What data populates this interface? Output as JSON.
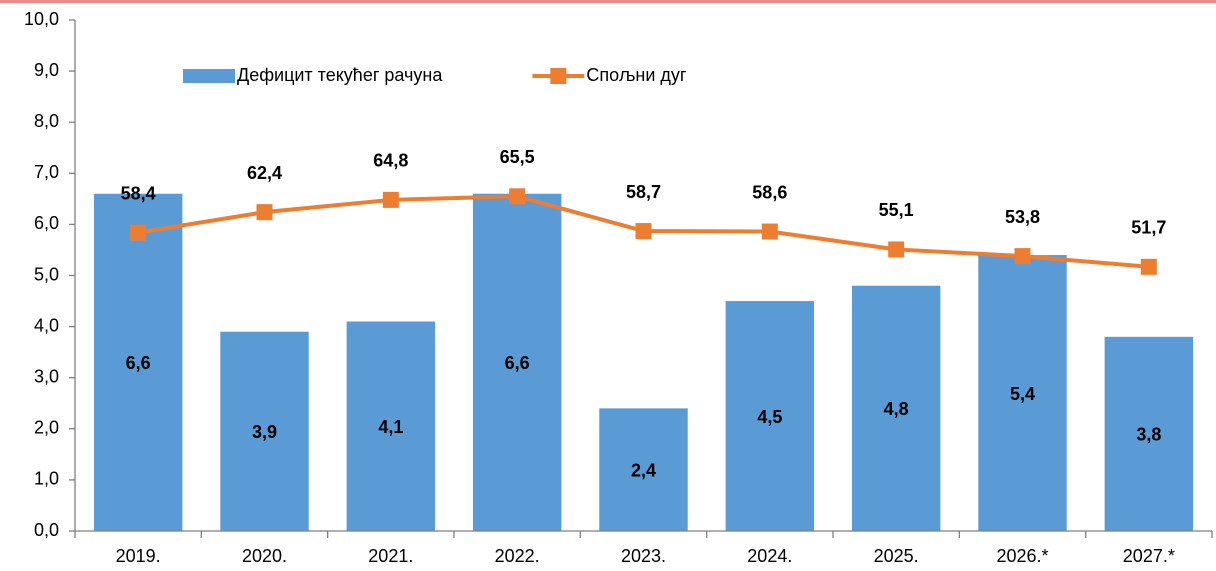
{
  "chart_data": {
    "type": "bar",
    "categories": [
      "2019.",
      "2020.",
      "2021.",
      "2022.",
      "2023.",
      "2024.",
      "2025.",
      "2026.*",
      "2027.*"
    ],
    "series": [
      {
        "name": "Дефицит текућег рачуна",
        "color": "#5b9bd5",
        "type": "bar",
        "values": [
          6.6,
          3.9,
          4.1,
          6.6,
          2.4,
          4.5,
          4.8,
          5.4,
          3.8
        ],
        "value_labels": [
          "6,6",
          "3,9",
          "4,1",
          "6,6",
          "2,4",
          "4,5",
          "4,8",
          "5,4",
          "3,8"
        ]
      },
      {
        "name": "Спољни дуг",
        "color": "#ed7d31",
        "type": "line",
        "axis": "y2",
        "values": [
          58.4,
          62.4,
          64.8,
          65.5,
          58.7,
          58.6,
          55.1,
          53.8,
          51.7
        ],
        "value_labels": [
          "58,4",
          "62,4",
          "64,8",
          "65,5",
          "58,7",
          "58,6",
          "55,1",
          "53,8",
          "51,7"
        ]
      }
    ],
    "ylim": [
      0,
      10
    ],
    "yticks": [
      {
        "value": 0,
        "label": "0,0"
      },
      {
        "value": 1,
        "label": "1,0"
      },
      {
        "value": 2,
        "label": "2,0"
      },
      {
        "value": 3,
        "label": "3,0"
      },
      {
        "value": 4,
        "label": "4,0"
      },
      {
        "value": 5,
        "label": "5,0"
      },
      {
        "value": 6,
        "label": "6,0"
      },
      {
        "value": 7,
        "label": "7,0"
      },
      {
        "value": 8,
        "label": "8,0"
      },
      {
        "value": 9,
        "label": "9,0"
      },
      {
        "value": 10,
        "label": "10,0"
      }
    ],
    "y2lim": [
      0,
      100
    ],
    "legend": "top"
  }
}
